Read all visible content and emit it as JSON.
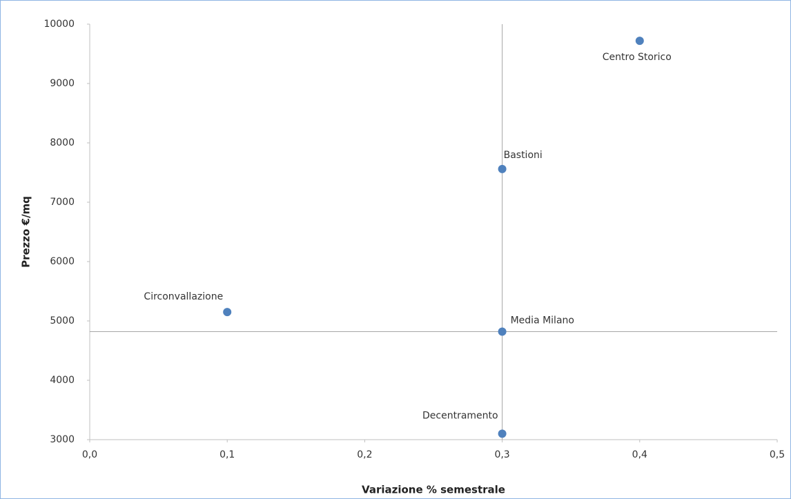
{
  "chart_data": {
    "type": "scatter",
    "x_label": "Variazione % semestrale",
    "y_label": "Prezzo €/mq",
    "point_labels": [
      "Centro Storico",
      "Bastioni",
      "Circonvallazione",
      "Media Milano",
      "Decentramento"
    ],
    "x": [
      0.4,
      0.3,
      0.1,
      0.3,
      0.3
    ],
    "values": [
      9720,
      7560,
      5150,
      4820,
      3100
    ],
    "color": "#4f81bd",
    "xlim": [
      0,
      0.5
    ],
    "xticks": [
      {
        "value": 0,
        "label": "0,0"
      },
      {
        "value": 0.1,
        "label": "0,1"
      },
      {
        "value": 0.2,
        "label": "0,2"
      },
      {
        "value": 0.3,
        "label": "0,3"
      },
      {
        "value": 0.4,
        "label": "0,4"
      },
      {
        "value": 0.5,
        "label": "0,5"
      }
    ],
    "ylim": [
      3000,
      10000
    ],
    "yticks": [
      3000,
      4000,
      5000,
      6000,
      7000,
      8000,
      9000,
      10000
    ],
    "grid": false
  }
}
